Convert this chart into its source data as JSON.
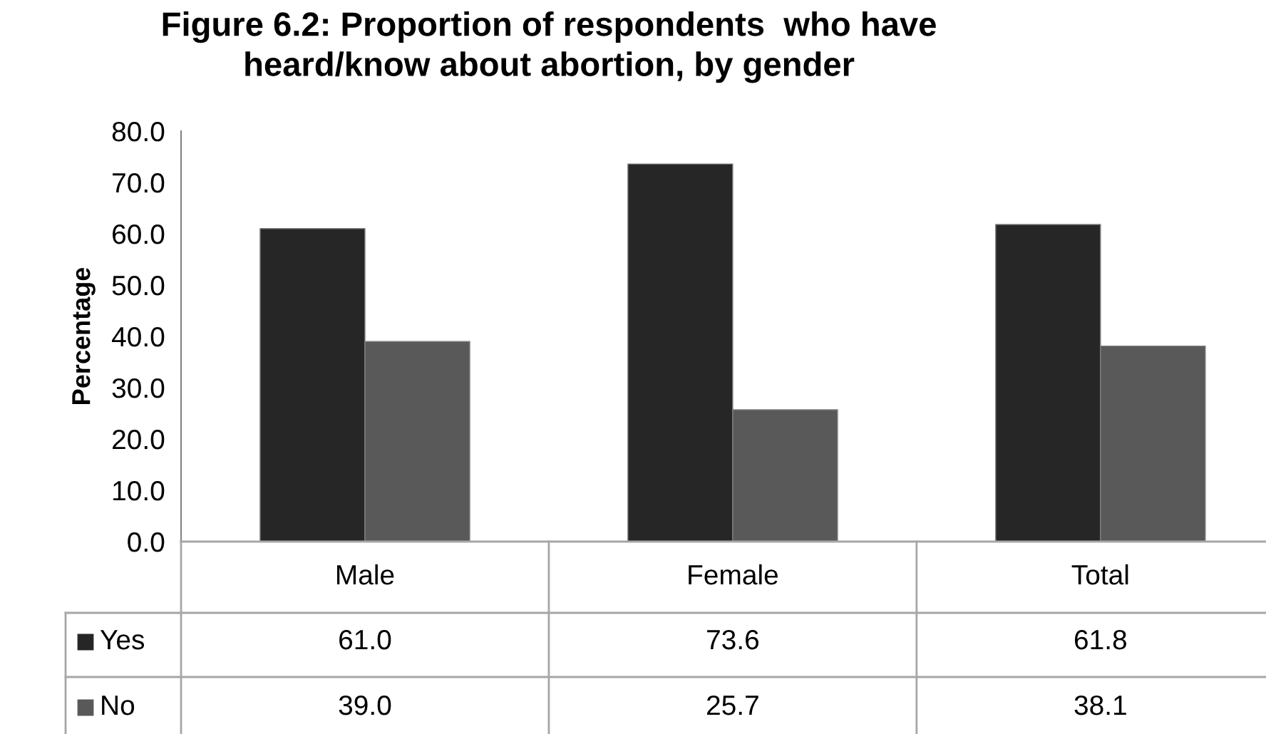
{
  "chart_data": {
    "type": "bar",
    "title": "Figure 6.2: Proportion of respondents  who have\nheard/know about abortion, by gender",
    "ylabel": "Percentage",
    "categories": [
      "Male",
      "Female",
      "Total"
    ],
    "series": [
      {
        "name": "Yes",
        "color": "#262626",
        "values": [
          61.0,
          73.6,
          61.8
        ],
        "value_labels": [
          "61.0",
          "73.6",
          "61.8"
        ]
      },
      {
        "name": "No",
        "color": "#595959",
        "values": [
          39.0,
          25.7,
          38.1
        ],
        "value_labels": [
          "39.0",
          "25.7",
          "38.1"
        ]
      }
    ],
    "ylim": [
      0,
      80
    ],
    "yticks": [
      {
        "value": 0,
        "label": "0.0"
      },
      {
        "value": 10,
        "label": "10.0"
      },
      {
        "value": 20,
        "label": "20.0"
      },
      {
        "value": 30,
        "label": "30.0"
      },
      {
        "value": 40,
        "label": "40.0"
      },
      {
        "value": 50,
        "label": "50.0"
      },
      {
        "value": 60,
        "label": "60.0"
      },
      {
        "value": 70,
        "label": "70.0"
      },
      {
        "value": 80,
        "label": "80.0"
      }
    ],
    "grid": false,
    "legend": "bottom"
  }
}
